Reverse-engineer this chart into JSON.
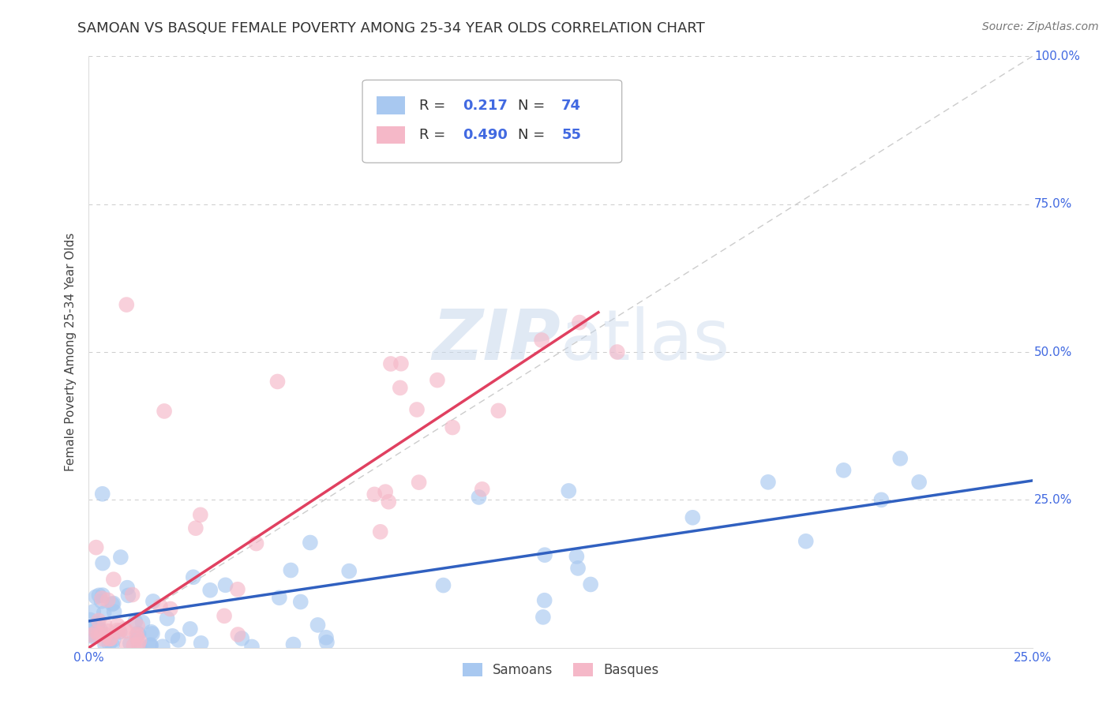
{
  "title": "SAMOAN VS BASQUE FEMALE POVERTY AMONG 25-34 YEAR OLDS CORRELATION CHART",
  "source": "Source: ZipAtlas.com",
  "ylabel": "Female Poverty Among 25-34 Year Olds",
  "xlim": [
    0.0,
    0.25
  ],
  "ylim": [
    0.0,
    1.0
  ],
  "x_tick_labels": [
    "0.0%",
    "25.0%"
  ],
  "y_tick_labels": [
    "",
    "25.0%",
    "50.0%",
    "75.0%",
    "100.0%"
  ],
  "watermark_zip": "ZIP",
  "watermark_atlas": "atlas",
  "samoan_color": "#a8c8f0",
  "basque_color": "#f5b8c8",
  "samoan_line_color": "#3060c0",
  "basque_line_color": "#e04060",
  "ref_line_color": "#cccccc",
  "legend_R_samoan": "0.217",
  "legend_N_samoan": "74",
  "legend_R_basque": "0.490",
  "legend_N_basque": "55",
  "legend_label_samoan": "Samoans",
  "legend_label_basque": "Basques",
  "background_color": "#ffffff",
  "grid_color": "#cccccc",
  "title_color": "#333333",
  "tick_color": "#4169E1",
  "label_color": "#444444",
  "title_fontsize": 13,
  "axis_label_fontsize": 11,
  "tick_fontsize": 11,
  "source_fontsize": 10,
  "samoan_slope": 0.95,
  "samoan_intercept": 0.045,
  "basque_slope": 4.2,
  "basque_intercept": 0.0
}
